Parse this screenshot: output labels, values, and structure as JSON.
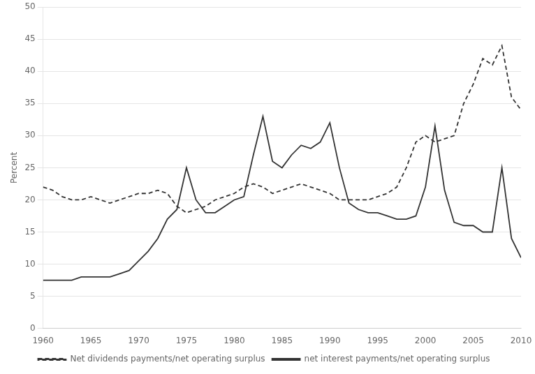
{
  "chart_data": {
    "type": "line",
    "x": [
      1960,
      1961,
      1962,
      1963,
      1964,
      1965,
      1966,
      1967,
      1968,
      1969,
      1970,
      1971,
      1972,
      1973,
      1974,
      1975,
      1976,
      1977,
      1978,
      1979,
      1980,
      1981,
      1982,
      1983,
      1984,
      1985,
      1986,
      1987,
      1988,
      1989,
      1990,
      1991,
      1992,
      1993,
      1994,
      1995,
      1996,
      1997,
      1998,
      1999,
      2000,
      2001,
      2002,
      2003,
      2004,
      2005,
      2006,
      2007,
      2008,
      2009,
      2010
    ],
    "series": [
      {
        "name": "Net dividends payments/net operating surplus",
        "color": "#333333",
        "line_style": "dashed",
        "values": [
          22.0,
          21.5,
          20.5,
          20.0,
          20.0,
          20.5,
          20.0,
          19.5,
          20.0,
          20.5,
          21.0,
          21.0,
          21.5,
          21.0,
          19.0,
          18.0,
          18.5,
          19.0,
          20.0,
          20.5,
          21.0,
          22.0,
          22.5,
          22.0,
          21.0,
          21.5,
          22.0,
          22.5,
          22.0,
          21.5,
          21.0,
          20.0,
          20.0,
          20.0,
          20.0,
          20.5,
          21.0,
          22.0,
          25.0,
          29.0,
          30.0,
          29.0,
          29.5,
          30.0,
          35.0,
          38.0,
          42.0,
          41.0,
          44.0,
          36.0,
          34.0
        ]
      },
      {
        "name": "net interest payments/net operating surplus",
        "color": "#333333",
        "line_style": "solid",
        "values": [
          7.5,
          7.5,
          7.5,
          7.5,
          8.0,
          8.0,
          8.0,
          8.0,
          8.5,
          9.0,
          10.5,
          12.0,
          14.0,
          17.0,
          18.5,
          25.0,
          20.0,
          18.0,
          18.0,
          19.0,
          20.0,
          20.5,
          27.0,
          33.0,
          26.0,
          25.0,
          27.0,
          28.5,
          28.0,
          29.0,
          32.0,
          25.0,
          19.5,
          18.5,
          18.0,
          18.0,
          17.5,
          17.0,
          17.0,
          17.5,
          22.0,
          31.5,
          21.5,
          16.5,
          16.0,
          16.0,
          15.0,
          15.0,
          25.0,
          14.0,
          11.0
        ]
      }
    ],
    "ylabel": "Percent",
    "xlim": [
      1960,
      2010
    ],
    "xticks": [
      1960,
      1965,
      1970,
      1975,
      1980,
      1985,
      1990,
      1995,
      2000,
      2005,
      2010
    ],
    "ylim": [
      0,
      50
    ],
    "yticks": [
      0,
      5,
      10,
      15,
      20,
      25,
      30,
      35,
      40,
      45,
      50
    ],
    "grid": "y",
    "legend": "bottom"
  }
}
